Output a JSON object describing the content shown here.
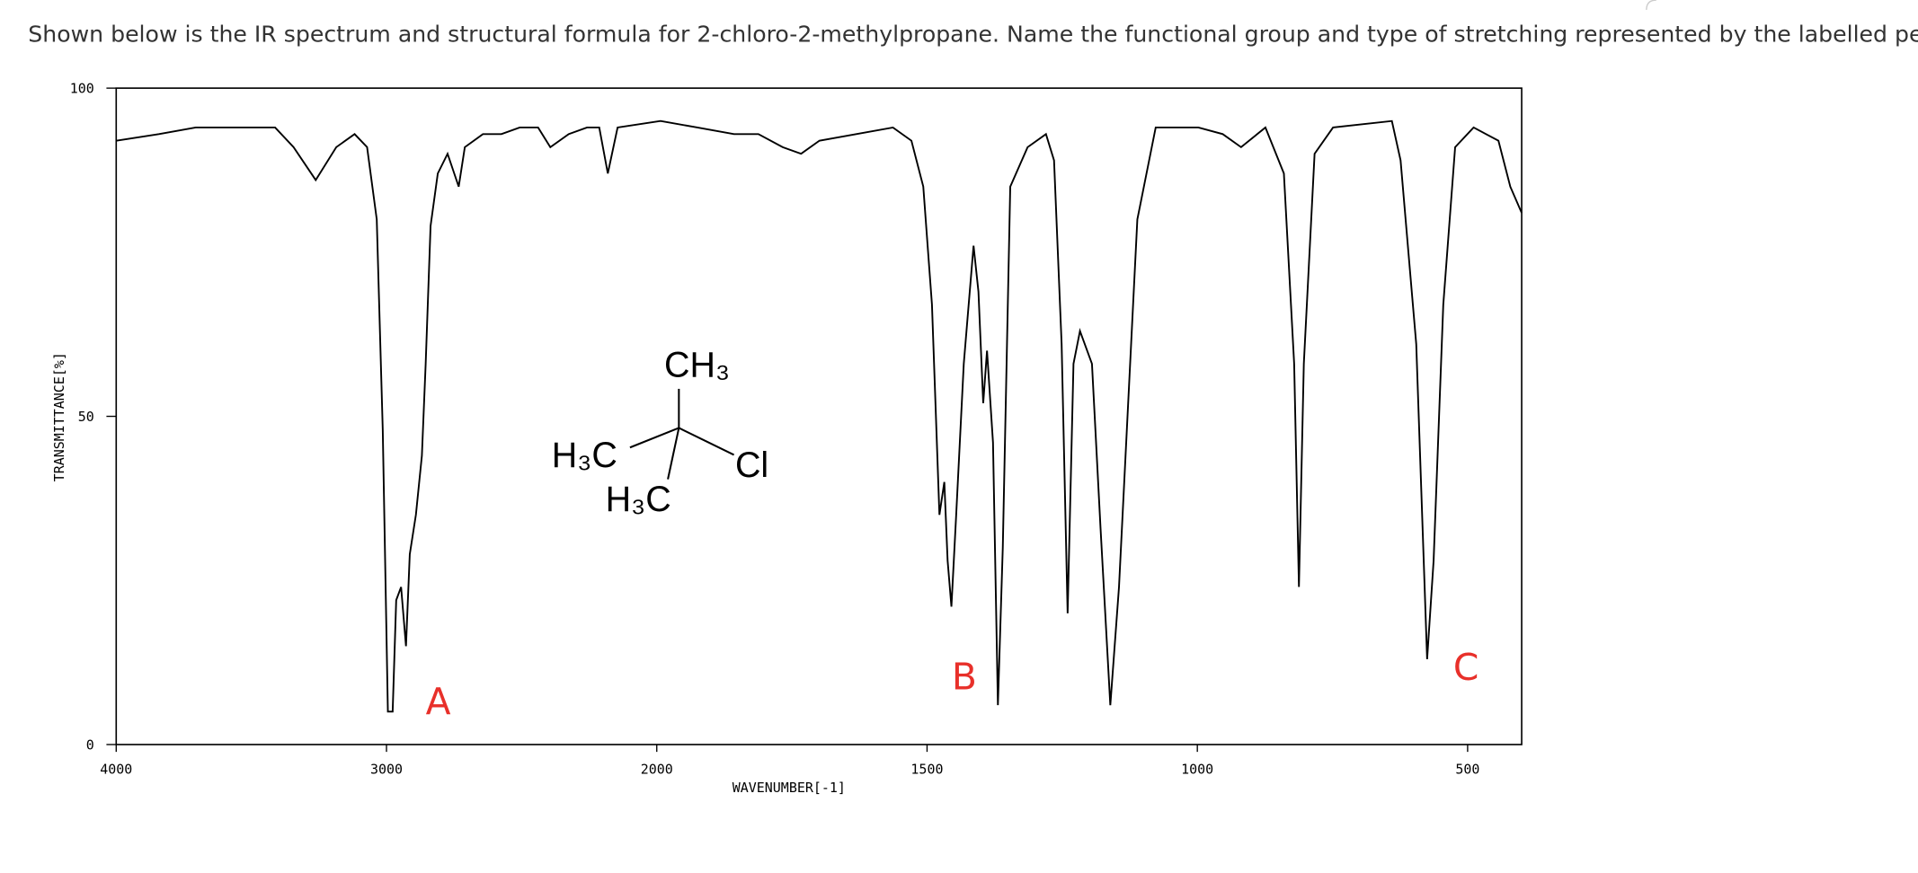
{
  "question": "Shown below is the IR spectrum and structural formula for 2-chloro-2-methylpropane. Name the functional group and type of stretching represented by the labelled peaks.",
  "structure": {
    "labels": [
      "CH₃",
      "H₃C",
      "Cl",
      "H₃C"
    ]
  },
  "chart_data": {
    "type": "line",
    "xlabel": "WAVENUMBER[-1]",
    "ylabel": "TRANSMITTANCE[%]",
    "xlim": [
      4000,
      400
    ],
    "xbreak": 2000,
    "xticks": [
      4000,
      3000,
      2000,
      1500,
      1000,
      500
    ],
    "ylim": [
      0,
      100
    ],
    "yticks": [
      0,
      50,
      100
    ],
    "annotations": [
      "A",
      "B",
      "C"
    ],
    "series": [
      {
        "color": "#000000",
        "x": [
          4000,
          3842,
          3706,
          3525,
          3412,
          3344,
          3262,
          3186,
          3118,
          3072,
          3036,
          3014,
          2995,
          2977,
          2964,
          2946,
          2928,
          2914,
          2891,
          2869,
          2855,
          2837,
          2810,
          2774,
          2733,
          2710,
          2643,
          2575,
          2507,
          2439,
          2394,
          2326,
          2258,
          2213,
          2181,
          2145,
          1993,
          1925,
          1857,
          1812,
          1767,
          1733,
          1699,
          1631,
          1563,
          1529,
          1507,
          1491,
          1477,
          1468,
          1462,
          1455,
          1446,
          1432,
          1414,
          1405,
          1396,
          1389,
          1378,
          1369,
          1360,
          1346,
          1314,
          1280,
          1265,
          1251,
          1240,
          1229,
          1217,
          1195,
          1179,
          1161,
          1145,
          1111,
          1077,
          998,
          953,
          919,
          874,
          840,
          821,
          812,
          803,
          783,
          749,
          640,
          624,
          595,
          575,
          563,
          545,
          523,
          489,
          443,
          421,
          400
        ],
        "values": [
          92,
          93,
          94,
          94,
          94,
          91,
          86,
          91,
          93,
          91,
          80,
          48,
          5,
          5,
          22,
          24,
          15,
          29,
          35,
          44,
          58,
          79,
          87,
          90,
          85,
          91,
          93,
          93,
          94,
          94,
          91,
          93,
          94,
          94,
          87,
          94,
          95,
          94,
          93,
          93,
          91,
          90,
          92,
          93,
          94,
          92,
          85,
          67,
          35,
          40,
          28,
          21,
          35,
          58,
          76,
          69,
          52,
          60,
          46,
          6,
          30,
          85,
          91,
          93,
          89,
          61,
          20,
          58,
          63,
          58,
          33,
          6,
          24,
          80,
          94,
          94,
          93,
          91,
          94,
          87,
          58,
          24,
          58,
          90,
          94,
          95,
          89,
          61,
          13,
          28,
          67,
          91,
          94,
          92,
          85,
          81
        ]
      }
    ]
  }
}
